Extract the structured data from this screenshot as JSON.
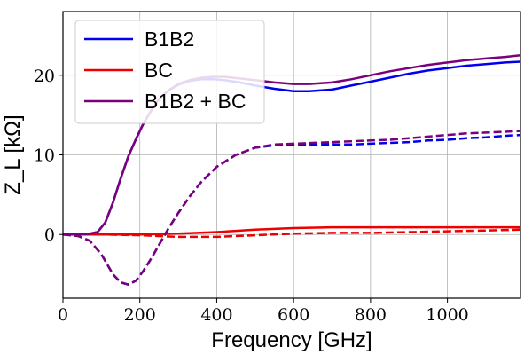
{
  "chart_data": {
    "type": "line",
    "xlabel": "Frequency [GHz]",
    "ylabel": "Z_L [kΩ]",
    "xlim": [
      0,
      1190
    ],
    "ylim": [
      -8,
      28
    ],
    "xticks": [
      0,
      200,
      400,
      600,
      800,
      1000
    ],
    "yticks": [
      0,
      10,
      20
    ],
    "grid": true,
    "legend": {
      "placement": "top-left",
      "entries": [
        "B1B2",
        "BC",
        "B1B2 + BC"
      ]
    },
    "series": [
      {
        "name": "B1B2",
        "color": "#0000ee",
        "style": "solid",
        "x": [
          0,
          60,
          90,
          110,
          130,
          150,
          170,
          190,
          210,
          230,
          250,
          275,
          300,
          330,
          360,
          390,
          420,
          460,
          500,
          550,
          600,
          640,
          700,
          750,
          800,
          850,
          900,
          950,
          1000,
          1050,
          1100,
          1150,
          1190
        ],
        "y": [
          0,
          0,
          0.3,
          1.5,
          4,
          7,
          9.8,
          12,
          14,
          15.6,
          17,
          18.1,
          18.8,
          19.3,
          19.5,
          19.5,
          19.4,
          19.1,
          18.7,
          18.3,
          18.0,
          18.0,
          18.2,
          18.7,
          19.2,
          19.7,
          20.2,
          20.6,
          20.9,
          21.2,
          21.4,
          21.6,
          21.7
        ]
      },
      {
        "name": "B1B2",
        "color": "#0000ee",
        "style": "dashed",
        "x": [
          0,
          40,
          70,
          100,
          130,
          150,
          170,
          190,
          210,
          230,
          250,
          275,
          300,
          330,
          360,
          400,
          450,
          500,
          550,
          600,
          650,
          700,
          750,
          800,
          850,
          900,
          950,
          1000,
          1050,
          1100,
          1150,
          1190
        ],
        "y": [
          0,
          -0.2,
          -0.8,
          -2.5,
          -5,
          -6,
          -6.3,
          -5.8,
          -4.5,
          -3,
          -1.3,
          0.8,
          2.7,
          4.8,
          6.6,
          8.5,
          10,
          10.9,
          11.2,
          11.3,
          11.3,
          11.3,
          11.3,
          11.4,
          11.5,
          11.6,
          11.8,
          11.9,
          12.1,
          12.2,
          12.4,
          12.5
        ]
      },
      {
        "name": "BC",
        "color": "#ee0000",
        "style": "solid",
        "x": [
          0,
          100,
          200,
          300,
          400,
          500,
          600,
          700,
          800,
          900,
          1000,
          1100,
          1190
        ],
        "y": [
          0,
          0,
          0,
          0.1,
          0.3,
          0.6,
          0.8,
          0.9,
          0.9,
          0.9,
          0.9,
          0.9,
          0.9
        ]
      },
      {
        "name": "BC",
        "color": "#ee0000",
        "style": "dashed",
        "x": [
          0,
          100,
          200,
          300,
          400,
          500,
          600,
          700,
          800,
          900,
          1000,
          1100,
          1190
        ],
        "y": [
          0,
          0,
          -0.1,
          -0.3,
          -0.3,
          -0.1,
          0.1,
          0.2,
          0.2,
          0.3,
          0.4,
          0.5,
          0.6
        ]
      },
      {
        "name": "B1B2 + BC",
        "color": "#7b007b",
        "style": "solid",
        "x": [
          0,
          60,
          90,
          110,
          130,
          150,
          170,
          190,
          210,
          230,
          250,
          275,
          300,
          330,
          360,
          390,
          420,
          460,
          500,
          550,
          600,
          640,
          700,
          750,
          800,
          850,
          900,
          950,
          1000,
          1050,
          1100,
          1150,
          1190
        ],
        "y": [
          0,
          0,
          0.3,
          1.5,
          4,
          7,
          9.8,
          12,
          14,
          15.6,
          17,
          18.1,
          18.9,
          19.4,
          19.7,
          19.8,
          19.8,
          19.6,
          19.4,
          19.1,
          18.9,
          18.9,
          19.1,
          19.5,
          20.0,
          20.5,
          20.9,
          21.3,
          21.6,
          21.9,
          22.1,
          22.3,
          22.5
        ]
      },
      {
        "name": "B1B2 + BC",
        "color": "#7b007b",
        "style": "dashed",
        "x": [
          0,
          40,
          70,
          100,
          130,
          150,
          170,
          190,
          210,
          230,
          250,
          275,
          300,
          330,
          360,
          400,
          450,
          500,
          550,
          600,
          650,
          700,
          750,
          800,
          850,
          900,
          950,
          1000,
          1050,
          1100,
          1150,
          1190
        ],
        "y": [
          0,
          -0.2,
          -0.8,
          -2.5,
          -5,
          -6,
          -6.3,
          -5.8,
          -4.5,
          -3,
          -1.3,
          0.8,
          2.7,
          4.8,
          6.6,
          8.5,
          10,
          10.9,
          11.3,
          11.4,
          11.5,
          11.6,
          11.7,
          11.8,
          11.9,
          12.1,
          12.3,
          12.5,
          12.7,
          12.8,
          12.9,
          13.0
        ]
      }
    ]
  }
}
